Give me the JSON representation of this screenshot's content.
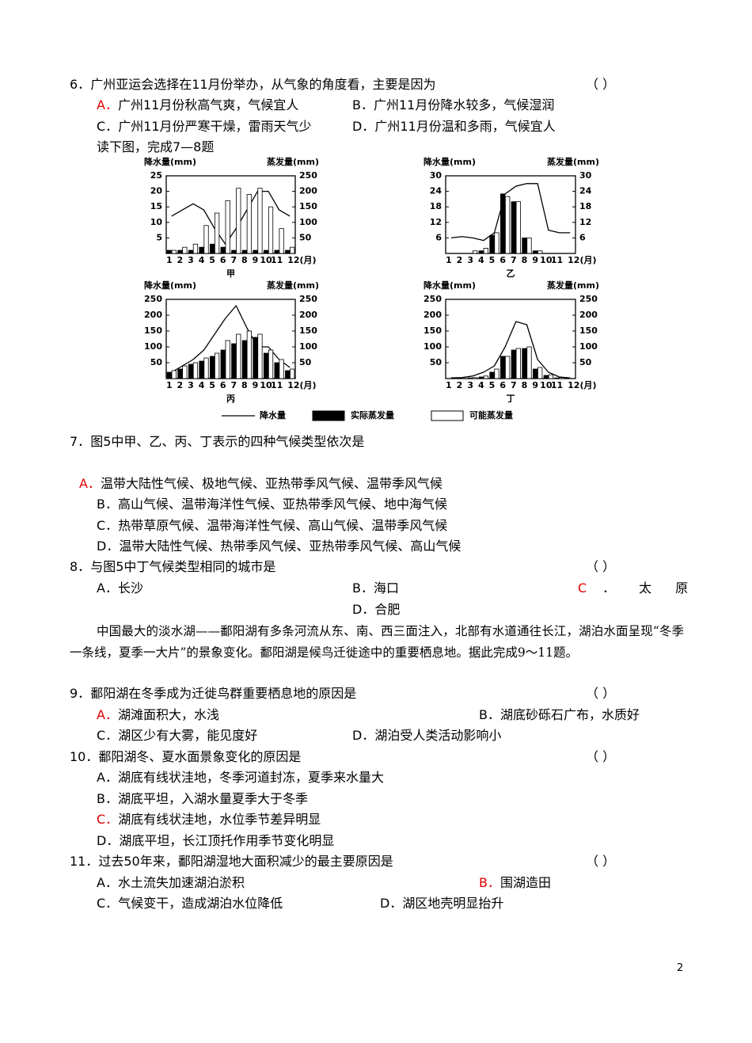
{
  "questions": [
    {
      "number": "6．",
      "stem": "广州亚运会选择在11月份举办，从气象的角度看，主要是因为",
      "bracket": "（ ）",
      "answer": "A",
      "options": [
        {
          "label": "A．",
          "text": "广州11月份秋高气爽，气候宜人"
        },
        {
          "label": "B．",
          "text": "广州11月份降水较多，气候湿润"
        },
        {
          "label": "C．",
          "text": "广州11月份严寒干燥，雷雨天气少"
        },
        {
          "label": "D．",
          "text": "广州11月份温和多雨，气候宜人"
        }
      ]
    },
    {
      "number": "7．",
      "stem": "图5中甲、乙、丙、丁表示的四种气候类型依次是",
      "answer": "A",
      "options": [
        {
          "label": "A．",
          "text": "温带大陆性气候、极地气候、亚热带季风气候、温带季风气候"
        },
        {
          "label": "B．",
          "text": "高山气候、温带海洋性气候、亚热带季风气候、地中海气候"
        },
        {
          "label": "C．",
          "text": "热带草原气候、温带海洋性气候、高山气候、温带季风气候"
        },
        {
          "label": "D．",
          "text": "温带大陆性气候、热带季风气候、亚热带季风气候、高山气候"
        }
      ]
    },
    {
      "number": "8．",
      "stem": "与图5中丁气候类型相同的城市是",
      "bracket": "（ ）",
      "answer": "C",
      "options": [
        {
          "label": "A．",
          "text": "长沙"
        },
        {
          "label": "B．",
          "text": "海口"
        },
        {
          "label": "C",
          "text": "．太原"
        },
        {
          "label": "D．",
          "text": "合肥"
        }
      ]
    },
    {
      "number": "9．",
      "stem": "鄱阳湖在冬季成为迁徙鸟群重要栖息地的原因是",
      "bracket": "（ ）",
      "answer": "A",
      "options": [
        {
          "label": "A．",
          "text": "湖滩面积大，水浅"
        },
        {
          "label": "B．",
          "text": "湖底砂砾石广布，水质好"
        },
        {
          "label": "C．",
          "text": "湖区少有大雾，能见度好"
        },
        {
          "label": "D．",
          "text": "湖泊受人类活动影响小"
        }
      ]
    },
    {
      "number": "10．",
      "stem": "鄱阳湖冬、夏水面景象变化的原因是",
      "bracket": "（ ）",
      "answer": "C",
      "options": [
        {
          "label": "A．",
          "text": "湖底有线状洼地，冬季河道封冻，夏季来水量大"
        },
        {
          "label": "B．",
          "text": "湖底平坦，入湖水量夏季大于冬季"
        },
        {
          "label": "C．",
          "text": "湖底有线状洼地，水位季节差异明显"
        },
        {
          "label": "D．",
          "text": "湖底平坦，长江顶托作用季节变化明显"
        }
      ]
    },
    {
      "number": "11．",
      "stem": "过去50年来，鄱阳湖湿地大面积减少的最主要原因是",
      "bracket": "（ ）",
      "answer": "B",
      "options": [
        {
          "label": "A．",
          "text": "水土流失加速湖泊淤积"
        },
        {
          "label": "B．",
          "text": "围湖造田"
        },
        {
          "label": "C．",
          "text": "气候变干，造成湖泊水位降低"
        },
        {
          "label": "D．",
          "text": "湖区地壳明显抬升"
        }
      ]
    }
  ],
  "intro": "读下图，完成7—8题",
  "passage": "中国最大的淡水湖——鄱阳湖有多条河流从东、南、西三面注入，北部有水道通往长江，湖泊水面呈现“冬季一条线，夏季一大片”的景象变化。鄱阳湖是候鸟迁徙途中的重要栖息地。据此完成9～11题。",
  "figure": {
    "legend": [
      {
        "name": "降水量",
        "kind": "line"
      },
      {
        "name": "实际蒸发量",
        "kind": "bar",
        "color": "#000000"
      },
      {
        "name": "可能蒸发量",
        "kind": "bar",
        "color": "#ffffff"
      }
    ],
    "charts": [
      {
        "type": "bar-line",
        "title": "甲",
        "y_label": "降水量(mm)",
        "y2_label": "蒸发量(mm)",
        "categories": [
          "1",
          "2",
          "3",
          "4",
          "5",
          "6",
          "7",
          "8",
          "9",
          "10",
          "11",
          "12(月)"
        ],
        "ylim": [
          0,
          25
        ],
        "yticks": [
          5,
          10,
          15,
          20,
          25
        ],
        "y2lim": [
          0,
          250
        ],
        "y2ticks": [
          50,
          100,
          150,
          200,
          250
        ],
        "series": [
          {
            "kind": "line",
            "values": [
              12,
              14,
              16,
              14,
              8,
              3,
              8,
              14,
              20,
              20,
              14,
              12
            ]
          },
          {
            "kind": "bar",
            "axis": "y2",
            "color": "#000000",
            "values": [
              10,
              10,
              10,
              20,
              30,
              20,
              10,
              10,
              10,
              10,
              10,
              10
            ]
          },
          {
            "kind": "bar",
            "axis": "y2",
            "color": "#ffffff",
            "values": [
              10,
              20,
              30,
              90,
              130,
              170,
              210,
              190,
              210,
              150,
              80,
              20
            ]
          }
        ]
      },
      {
        "type": "bar-line",
        "title": "乙",
        "y_label": "降水量(mm)",
        "y2_label": "蒸发量(mm)",
        "categories": [
          "1",
          "2",
          "3",
          "4",
          "5",
          "6",
          "7",
          "8",
          "9",
          "10",
          "11",
          "12(月)"
        ],
        "ylim": [
          0,
          30
        ],
        "yticks": [
          6,
          12,
          18,
          24,
          30
        ],
        "y2lim": [
          0,
          30
        ],
        "y2ticks": [
          6,
          12,
          18,
          24,
          30
        ],
        "series": [
          {
            "kind": "line",
            "values": [
              6,
              6.5,
              6,
              5,
              8,
              23,
              26,
              27,
              27,
              9,
              8,
              8
            ]
          },
          {
            "kind": "bar",
            "axis": "y2",
            "color": "#000000",
            "values": [
              0,
              0,
              0,
              1,
              7,
              23,
              20,
              6,
              1,
              0,
              0,
              0
            ]
          },
          {
            "kind": "bar",
            "axis": "y2",
            "color": "#ffffff",
            "values": [
              0,
              0,
              1,
              2,
              8,
              22,
              20,
              6,
              1,
              0,
              0,
              0
            ]
          }
        ]
      },
      {
        "type": "bar-line",
        "title": "丙",
        "y_label": "降水量(mm)",
        "y2_label": "蒸发量(mm)",
        "categories": [
          "1",
          "2",
          "3",
          "4",
          "5",
          "6",
          "7",
          "8",
          "9",
          "10",
          "11",
          "12(月)"
        ],
        "ylim": [
          0,
          250
        ],
        "yticks": [
          50,
          100,
          150,
          200,
          250
        ],
        "y2lim": [
          0,
          250
        ],
        "y2ticks": [
          50,
          100,
          150,
          200,
          250
        ],
        "series": [
          {
            "kind": "line",
            "values": [
              20,
              40,
              60,
              90,
              140,
              190,
              230,
              160,
              100,
              100,
              60,
              35
            ]
          },
          {
            "kind": "bar",
            "axis": "y2",
            "color": "#000000",
            "values": [
              20,
              30,
              45,
              55,
              70,
              90,
              110,
              120,
              130,
              80,
              50,
              25
            ]
          },
          {
            "kind": "bar",
            "axis": "y2",
            "color": "#ffffff",
            "values": [
              25,
              40,
              50,
              65,
              80,
              120,
              140,
              150,
              140,
              90,
              60,
              30
            ]
          }
        ]
      },
      {
        "type": "bar-line",
        "title": "丁",
        "y_label": "降水量(mm)",
        "y2_label": "蒸发量(mm)",
        "categories": [
          "1",
          "2",
          "3",
          "4",
          "5",
          "6",
          "7",
          "8",
          "9",
          "10",
          "11",
          "12(月)"
        ],
        "ylim": [
          0,
          250
        ],
        "yticks": [
          50,
          100,
          150,
          200,
          250
        ],
        "y2lim": [
          0,
          250
        ],
        "y2ticks": [
          50,
          100,
          150,
          200,
          250
        ],
        "series": [
          {
            "kind": "line",
            "values": [
              2,
              3,
              8,
              20,
              40,
              100,
              180,
              170,
              60,
              20,
              5,
              2
            ]
          },
          {
            "kind": "bar",
            "axis": "y2",
            "color": "#000000",
            "values": [
              0,
              0,
              2,
              5,
              20,
              70,
              90,
              95,
              30,
              10,
              2,
              0
            ]
          },
          {
            "kind": "bar",
            "axis": "y2",
            "color": "#ffffff",
            "values": [
              0,
              0,
              3,
              8,
              30,
              70,
              95,
              100,
              35,
              12,
              3,
              0
            ]
          }
        ]
      }
    ]
  },
  "page_number": "2"
}
